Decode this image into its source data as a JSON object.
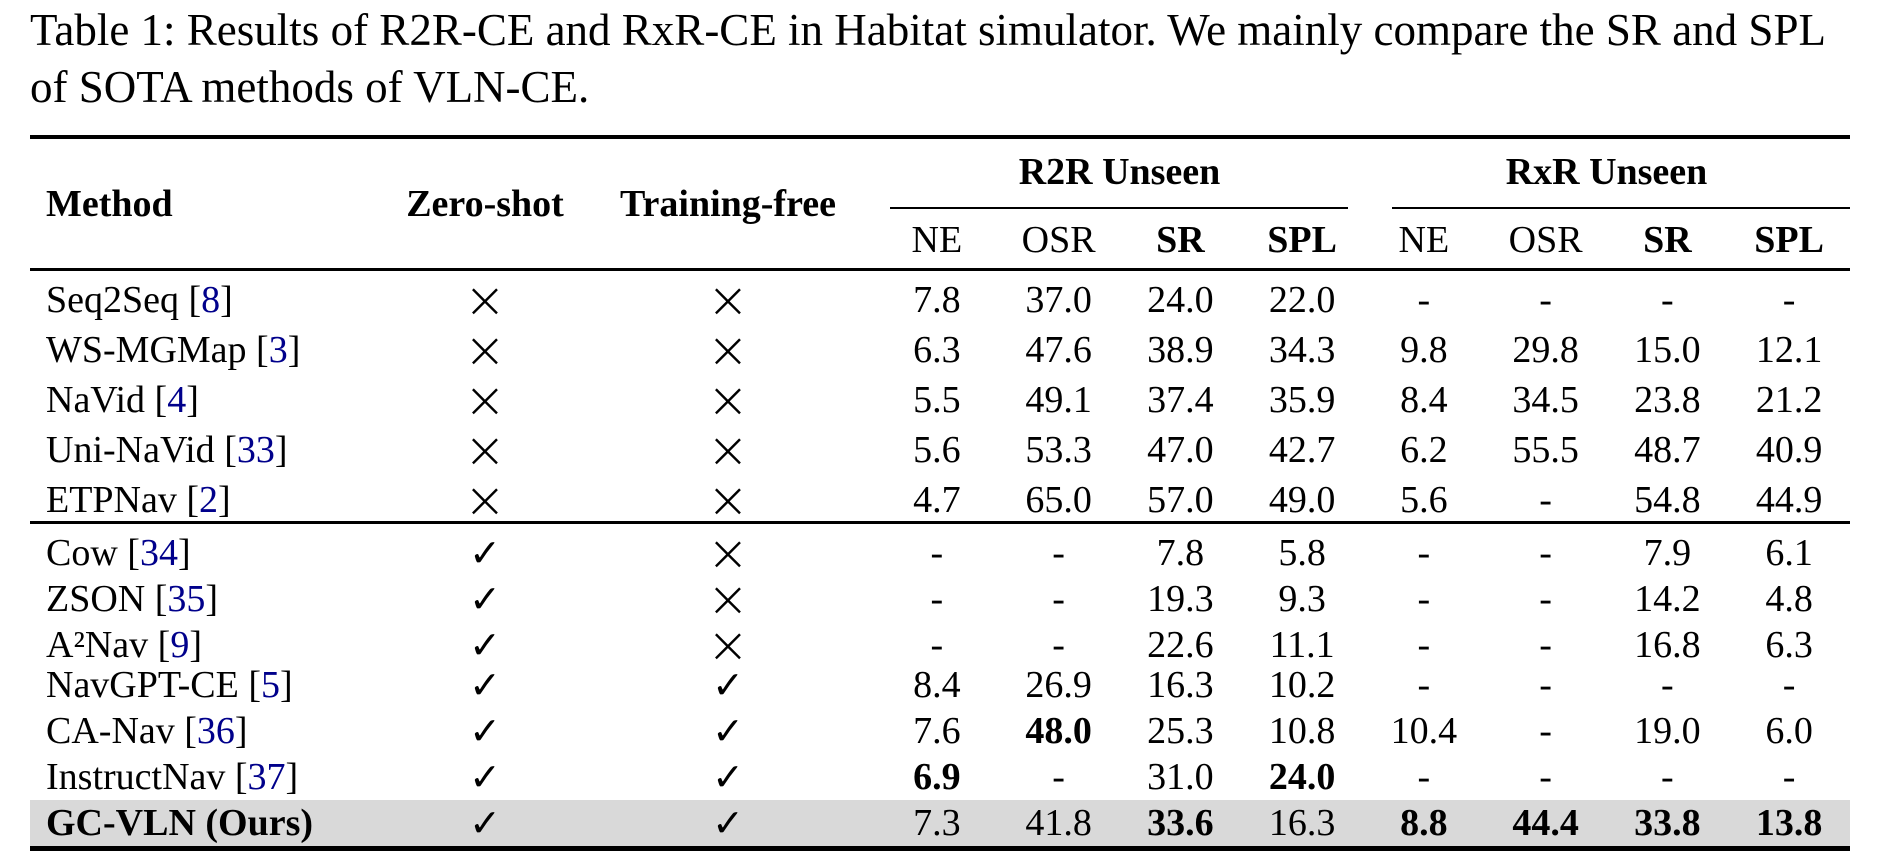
{
  "caption": {
    "line1": "Table 1: Results of R2R-CE and RxR-CE in Habitat simulator. We mainly compare the SR and SPL",
    "line2": "of SOTA methods of VLN-CE."
  },
  "table": {
    "columns": {
      "method": "Method",
      "zero_shot": "Zero-shot",
      "training_free": "Training-free"
    },
    "groups": [
      {
        "label": "R2R Unseen",
        "subcols": [
          "NE",
          "OSR",
          "SR",
          "SPL"
        ]
      },
      {
        "label": "RxR Unseen",
        "subcols": [
          "NE",
          "OSR",
          "SR",
          "SPL"
        ]
      }
    ],
    "marks": {
      "yes": "✓",
      "no": "×"
    },
    "colors": {
      "citation": "#00008B",
      "highlight": "#d9d9d9"
    },
    "rows": [
      {
        "method": "Seq2Seq",
        "cite": "8",
        "zero_shot": false,
        "training_free": false,
        "values": [
          "7.8",
          "37.0",
          "24.0",
          "22.0",
          "-",
          "-",
          "-",
          "-"
        ],
        "bold_values": [],
        "section": 1,
        "highlight": false,
        "method_bold": false
      },
      {
        "method": "WS-MGMap",
        "cite": "3",
        "zero_shot": false,
        "training_free": false,
        "values": [
          "6.3",
          "47.6",
          "38.9",
          "34.3",
          "9.8",
          "29.8",
          "15.0",
          "12.1"
        ],
        "bold_values": [],
        "section": 1,
        "highlight": false,
        "method_bold": false
      },
      {
        "method": "NaVid",
        "cite": "4",
        "zero_shot": false,
        "training_free": false,
        "values": [
          "5.5",
          "49.1",
          "37.4",
          "35.9",
          "8.4",
          "34.5",
          "23.8",
          "21.2"
        ],
        "bold_values": [],
        "section": 1,
        "highlight": false,
        "method_bold": false
      },
      {
        "method": "Uni-NaVid",
        "cite": "33",
        "zero_shot": false,
        "training_free": false,
        "values": [
          "5.6",
          "53.3",
          "47.0",
          "42.7",
          "6.2",
          "55.5",
          "48.7",
          "40.9"
        ],
        "bold_values": [],
        "section": 1,
        "highlight": false,
        "method_bold": false
      },
      {
        "method": "ETPNav",
        "cite": "2",
        "zero_shot": false,
        "training_free": false,
        "values": [
          "4.7",
          "65.0",
          "57.0",
          "49.0",
          "5.6",
          "-",
          "54.8",
          "44.9"
        ],
        "bold_values": [],
        "section": 1,
        "highlight": false,
        "method_bold": false
      },
      {
        "method": "Cow",
        "cite": "34",
        "zero_shot": true,
        "training_free": false,
        "values": [
          "-",
          "-",
          "7.8",
          "5.8",
          "-",
          "-",
          "7.9",
          "6.1"
        ],
        "bold_values": [],
        "section": 2,
        "highlight": false,
        "method_bold": false
      },
      {
        "method": "ZSON",
        "cite": "35",
        "zero_shot": true,
        "training_free": false,
        "values": [
          "-",
          "-",
          "19.3",
          "9.3",
          "-",
          "-",
          "14.2",
          "4.8"
        ],
        "bold_values": [],
        "section": 2,
        "highlight": false,
        "method_bold": false
      },
      {
        "method": "A²Nav",
        "cite": "9",
        "zero_shot": true,
        "training_free": false,
        "values": [
          "-",
          "-",
          "22.6",
          "11.1",
          "-",
          "-",
          "16.8",
          "6.3"
        ],
        "bold_values": [],
        "section": 2,
        "highlight": false,
        "method_bold": false
      },
      {
        "method": "NavGPT-CE",
        "cite": "5",
        "zero_shot": true,
        "training_free": true,
        "values": [
          "8.4",
          "26.9",
          "16.3",
          "10.2",
          "-",
          "-",
          "-",
          "-"
        ],
        "bold_values": [],
        "section": 2,
        "highlight": false,
        "method_bold": false
      },
      {
        "method": "CA-Nav",
        "cite": "36",
        "zero_shot": true,
        "training_free": true,
        "values": [
          "7.6",
          "48.0",
          "25.3",
          "10.8",
          "10.4",
          "-",
          "19.0",
          "6.0"
        ],
        "bold_values": [
          1
        ],
        "section": 2,
        "highlight": false,
        "method_bold": false
      },
      {
        "method": "InstructNav",
        "cite": "37",
        "zero_shot": true,
        "training_free": true,
        "values": [
          "6.9",
          "-",
          "31.0",
          "24.0",
          "-",
          "-",
          "-",
          "-"
        ],
        "bold_values": [
          0,
          3
        ],
        "section": 2,
        "highlight": false,
        "method_bold": false
      },
      {
        "method": "GC-VLN (Ours)",
        "cite": null,
        "zero_shot": true,
        "training_free": true,
        "values": [
          "7.3",
          "41.8",
          "33.6",
          "16.3",
          "8.8",
          "44.4",
          "33.8",
          "13.8"
        ],
        "bold_values": [
          2,
          4,
          5,
          6,
          7
        ],
        "section": 2,
        "highlight": true,
        "method_bold": true
      }
    ]
  }
}
